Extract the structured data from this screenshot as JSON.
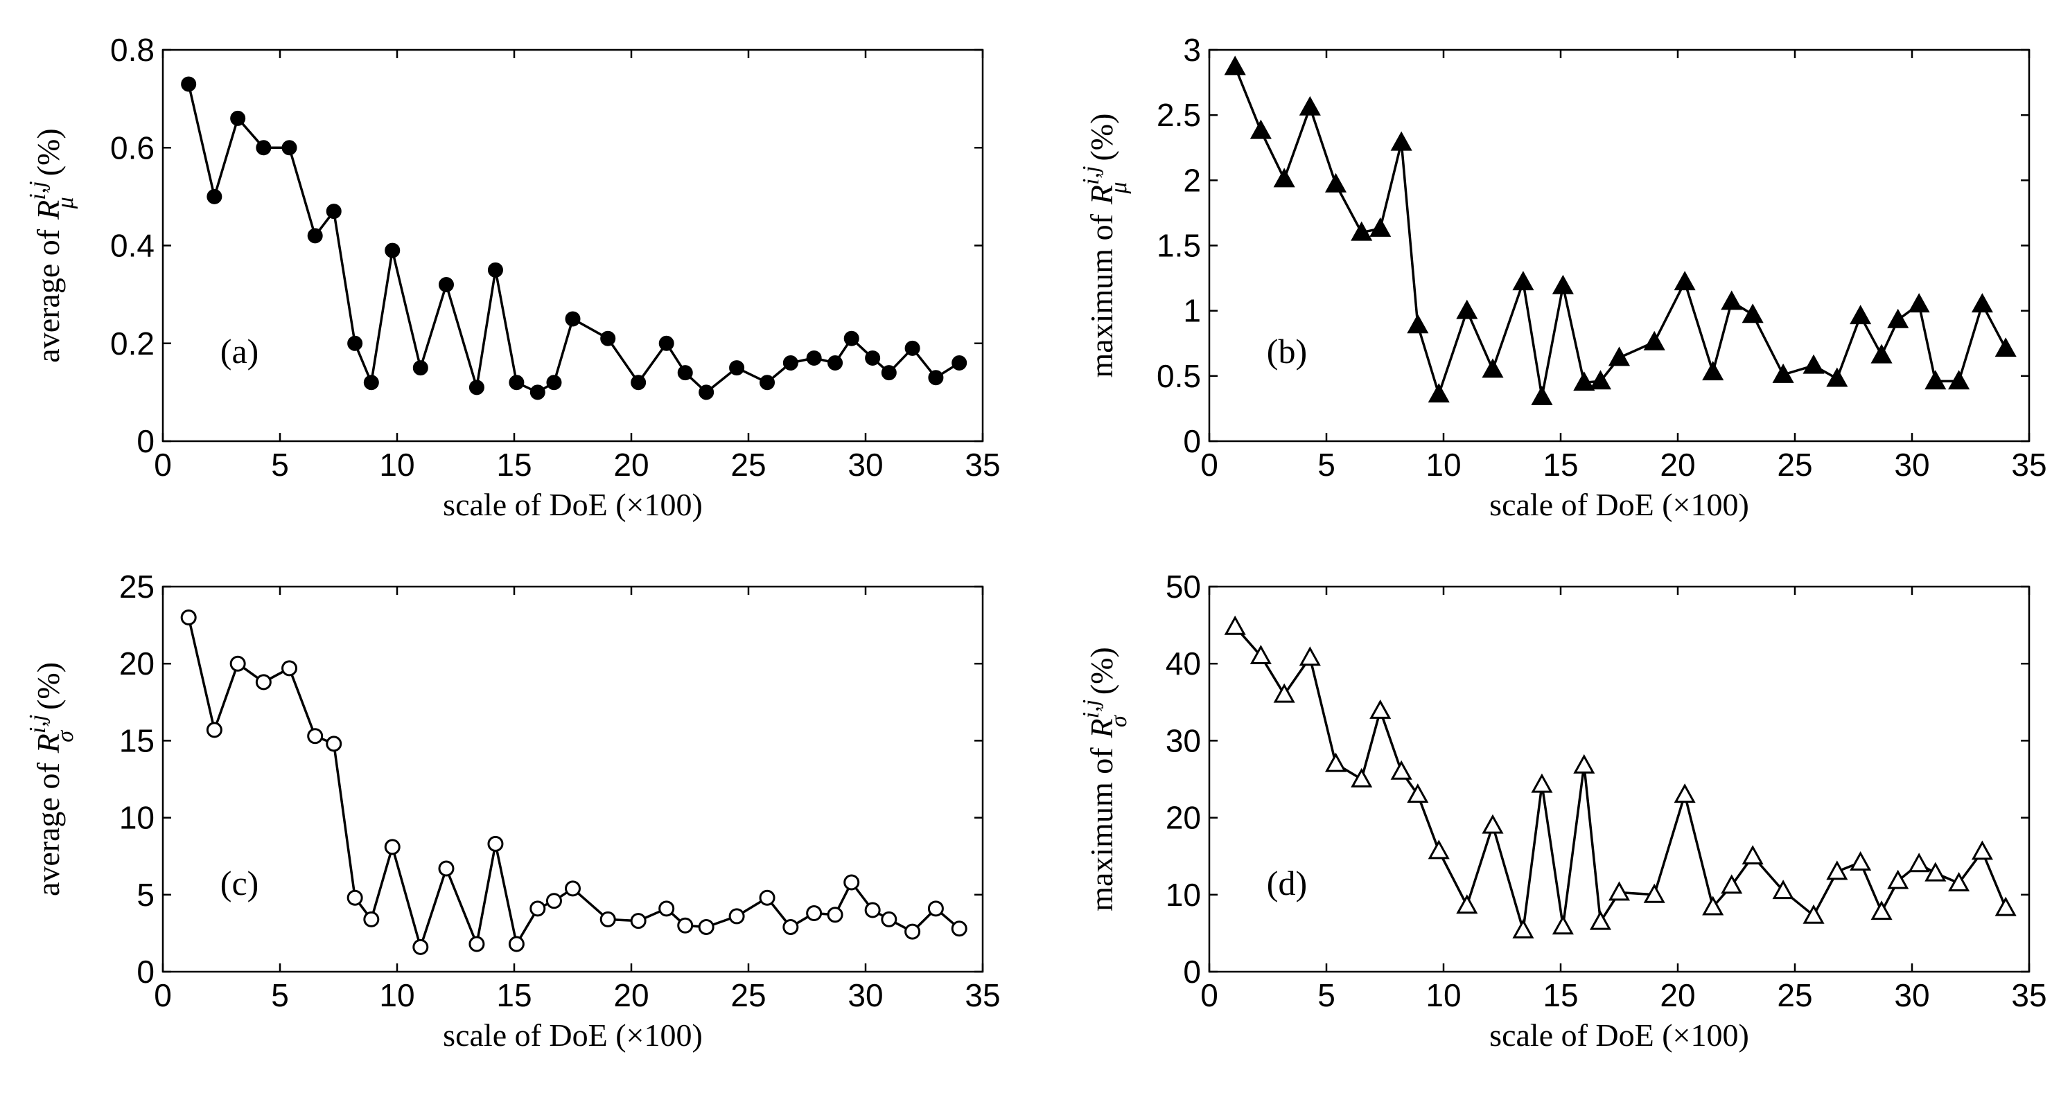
{
  "chart_data": [
    {
      "type": "line",
      "panel_tag": "(a)",
      "ylabel_prefix": "average of",
      "ylabel_symbol": "R",
      "ylabel_superscript": "i,j",
      "ylabel_subscript": "μ",
      "ylabel_suffix": "(%)",
      "xlabel": "scale of DoE (×100)",
      "xlim": [
        0,
        35
      ],
      "ylim": [
        0,
        0.8
      ],
      "xticks": [
        0,
        5,
        10,
        15,
        20,
        25,
        30,
        35
      ],
      "xtick_labels": [
        "0",
        "5",
        "10",
        "15",
        "20",
        "25",
        "30",
        "35"
      ],
      "yticks": [
        0,
        0.2,
        0.4,
        0.6,
        0.8
      ],
      "ytick_labels": [
        "0",
        "0.2",
        "0.4",
        "0.6",
        "0.8"
      ],
      "marker": "filled-circle",
      "x": [
        1.1,
        2.2,
        3.2,
        4.3,
        5.4,
        6.5,
        7.3,
        8.2,
        8.9,
        9.8,
        11,
        12.1,
        13.4,
        14.2,
        15.1,
        16,
        16.7,
        17.5,
        19,
        20.3,
        21.5,
        22.3,
        23.2,
        24.5,
        25.8,
        26.8,
        27.8,
        28.7,
        29.4,
        30.3,
        31,
        32,
        33,
        34
      ],
      "y": [
        0.73,
        0.5,
        0.66,
        0.6,
        0.6,
        0.42,
        0.47,
        0.2,
        0.12,
        0.39,
        0.15,
        0.32,
        0.11,
        0.35,
        0.12,
        0.1,
        0.12,
        0.25,
        0.21,
        0.12,
        0.2,
        0.14,
        0.1,
        0.15,
        0.12,
        0.16,
        0.17,
        0.16,
        0.21,
        0.17,
        0.14,
        0.19,
        0.13,
        0.16
      ]
    },
    {
      "type": "line",
      "panel_tag": "(b)",
      "ylabel_prefix": "maximum of",
      "ylabel_symbol": "R",
      "ylabel_superscript": "i,j",
      "ylabel_subscript": "μ",
      "ylabel_suffix": "(%)",
      "xlabel": "scale of DoE (×100)",
      "xlim": [
        0,
        35
      ],
      "ylim": [
        0,
        3
      ],
      "xticks": [
        0,
        5,
        10,
        15,
        20,
        25,
        30,
        35
      ],
      "xtick_labels": [
        "0",
        "5",
        "10",
        "15",
        "20",
        "25",
        "30",
        "35"
      ],
      "yticks": [
        0,
        0.5,
        1,
        1.5,
        2,
        2.5,
        3
      ],
      "ytick_labels": [
        "0",
        "0.5",
        "1",
        "1.5",
        "2",
        "2.5",
        "3"
      ],
      "marker": "filled-triangle",
      "x": [
        1.1,
        2.2,
        3.2,
        4.3,
        5.4,
        6.5,
        7.3,
        8.2,
        8.9,
        9.8,
        11,
        12.1,
        13.4,
        14.2,
        15.1,
        16,
        16.7,
        17.5,
        19,
        20.3,
        21.5,
        22.3,
        23.2,
        24.5,
        25.8,
        26.8,
        27.8,
        28.7,
        29.4,
        30.3,
        31,
        32,
        33,
        34
      ],
      "y": [
        2.87,
        2.38,
        2.01,
        2.56,
        1.97,
        1.6,
        1.63,
        2.29,
        0.89,
        0.36,
        1.0,
        0.55,
        1.22,
        0.34,
        1.19,
        0.45,
        0.46,
        0.64,
        0.76,
        1.22,
        0.53,
        1.07,
        0.97,
        0.51,
        0.58,
        0.48,
        0.96,
        0.66,
        0.93,
        1.05,
        0.46,
        0.46,
        1.05,
        0.71
      ]
    },
    {
      "type": "line",
      "panel_tag": "(c)",
      "ylabel_prefix": "average of",
      "ylabel_symbol": "R",
      "ylabel_superscript": "i,j",
      "ylabel_subscript": "σ",
      "ylabel_suffix": "(%)",
      "xlabel": "scale of DoE (×100)",
      "xlim": [
        0,
        35
      ],
      "ylim": [
        0,
        25
      ],
      "xticks": [
        0,
        5,
        10,
        15,
        20,
        25,
        30,
        35
      ],
      "xtick_labels": [
        "0",
        "5",
        "10",
        "15",
        "20",
        "25",
        "30",
        "35"
      ],
      "yticks": [
        0,
        5,
        10,
        15,
        20,
        25
      ],
      "ytick_labels": [
        "0",
        "5",
        "10",
        "15",
        "20",
        "25"
      ],
      "marker": "open-circle",
      "x": [
        1.1,
        2.2,
        3.2,
        4.3,
        5.4,
        6.5,
        7.3,
        8.2,
        8.9,
        9.8,
        11,
        12.1,
        13.4,
        14.2,
        15.1,
        16,
        16.7,
        17.5,
        19,
        20.3,
        21.5,
        22.3,
        23.2,
        24.5,
        25.8,
        26.8,
        27.8,
        28.7,
        29.4,
        30.3,
        31,
        32,
        33,
        34
      ],
      "y": [
        23.0,
        15.7,
        20.0,
        18.8,
        19.7,
        15.3,
        14.8,
        4.8,
        3.4,
        8.1,
        1.6,
        6.7,
        1.8,
        8.3,
        1.8,
        4.1,
        4.6,
        5.4,
        3.4,
        3.3,
        4.1,
        3.0,
        2.9,
        3.6,
        4.8,
        2.9,
        3.8,
        3.7,
        5.8,
        4.0,
        3.4,
        2.6,
        4.1,
        2.8
      ]
    },
    {
      "type": "line",
      "panel_tag": "(d)",
      "ylabel_prefix": "maximum of",
      "ylabel_symbol": "R",
      "ylabel_superscript": "i,j",
      "ylabel_subscript": "σ",
      "ylabel_suffix": "(%)",
      "xlabel": "scale of DoE (×100)",
      "xlim": [
        0,
        35
      ],
      "ylim": [
        0,
        50
      ],
      "xticks": [
        0,
        5,
        10,
        15,
        20,
        25,
        30,
        35
      ],
      "xtick_labels": [
        "0",
        "5",
        "10",
        "15",
        "20",
        "25",
        "30",
        "35"
      ],
      "yticks": [
        0,
        10,
        20,
        30,
        40,
        50
      ],
      "ytick_labels": [
        "0",
        "10",
        "20",
        "30",
        "40",
        "50"
      ],
      "marker": "open-triangle",
      "x": [
        1.1,
        2.2,
        3.2,
        4.3,
        5.4,
        6.5,
        7.3,
        8.2,
        8.9,
        9.8,
        11,
        12.1,
        13.4,
        14.2,
        15.1,
        16,
        16.7,
        17.5,
        19,
        20.3,
        21.5,
        22.3,
        23.2,
        24.5,
        25.8,
        26.8,
        27.8,
        28.7,
        29.4,
        30.3,
        31,
        32,
        33,
        34
      ],
      "y": [
        44.8,
        41.0,
        36.0,
        40.8,
        27.0,
        25.0,
        33.9,
        26.0,
        23.0,
        15.7,
        8.6,
        19.0,
        5.4,
        24.3,
        5.9,
        26.8,
        6.5,
        10.3,
        10.0,
        23.0,
        8.4,
        11.2,
        15.0,
        10.5,
        7.3,
        13.0,
        14.2,
        7.8,
        11.8,
        14.0,
        12.8,
        11.5,
        15.6,
        8.3
      ]
    }
  ]
}
